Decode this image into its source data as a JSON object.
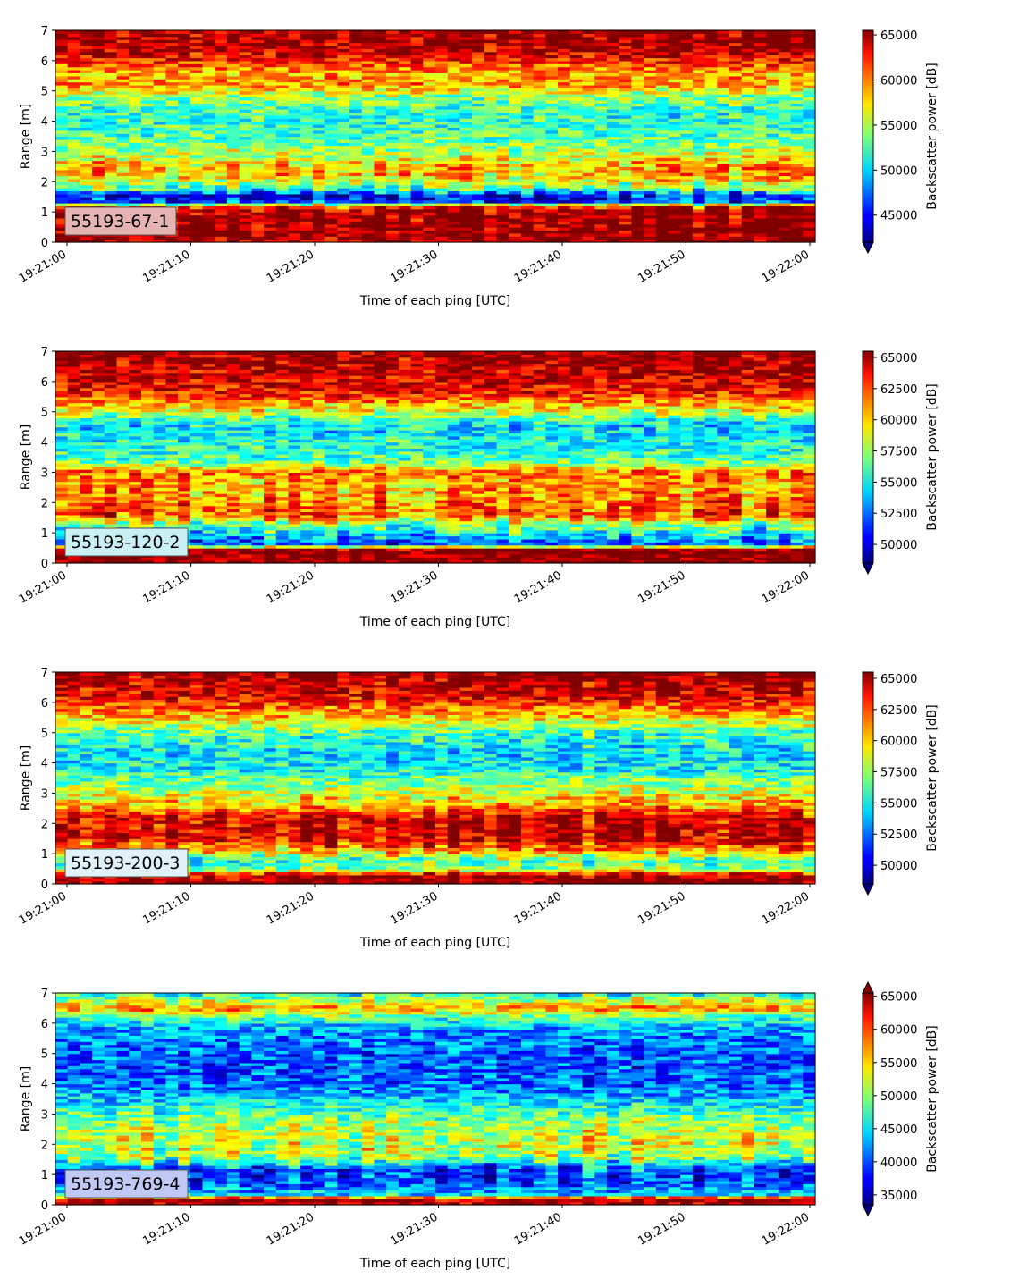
{
  "chart_data": [
    {
      "type": "heatmap",
      "label": "55193-67-1",
      "label_color": "#e6b3b3",
      "xlabel": "Time of each ping [UTC]",
      "ylabel": "Range [m]",
      "colorbar_label": "Backscatter power [dB]",
      "x_ticks": [
        "19:21:00",
        "19:21:10",
        "19:21:20",
        "19:21:30",
        "19:21:40",
        "19:21:50",
        "19:22:00"
      ],
      "y_ticks": [
        "0",
        "1",
        "2",
        "3",
        "4",
        "5",
        "6",
        "7"
      ],
      "ylim": [
        0,
        7
      ],
      "clim": [
        42000,
        65500
      ],
      "colorbar_ticks": [
        "45000",
        "50000",
        "55000",
        "60000",
        "65000"
      ],
      "colorbar_extend": "min",
      "profile": [
        [
          0.0,
          0.95
        ],
        [
          0.2,
          0.99
        ],
        [
          1.1,
          0.99
        ],
        [
          1.2,
          0.75
        ],
        [
          1.35,
          0.2
        ],
        [
          1.55,
          0.12
        ],
        [
          1.75,
          0.45
        ],
        [
          2.2,
          0.7
        ],
        [
          2.5,
          0.72
        ],
        [
          2.9,
          0.58
        ],
        [
          3.5,
          0.45
        ],
        [
          4.2,
          0.4
        ],
        [
          4.8,
          0.5
        ],
        [
          5.2,
          0.72
        ],
        [
          5.6,
          0.7
        ],
        [
          6.0,
          0.85
        ],
        [
          6.4,
          0.96
        ],
        [
          7.0,
          1.0
        ]
      ]
    },
    {
      "type": "heatmap",
      "label": "55193-120-2",
      "label_color": "#c8f0f5",
      "xlabel": "Time of each ping [UTC]",
      "ylabel": "Range [m]",
      "colorbar_label": "Backscatter power [dB]",
      "x_ticks": [
        "19:21:00",
        "19:21:10",
        "19:21:20",
        "19:21:30",
        "19:21:40",
        "19:21:50",
        "19:22:00"
      ],
      "y_ticks": [
        "0",
        "1",
        "2",
        "3",
        "4",
        "5",
        "6",
        "7"
      ],
      "ylim": [
        0,
        7
      ],
      "clim": [
        48500,
        65500
      ],
      "colorbar_ticks": [
        "50000",
        "52500",
        "55000",
        "57500",
        "60000",
        "62500",
        "65000"
      ],
      "colorbar_extend": "min",
      "profile": [
        [
          0.0,
          1.0
        ],
        [
          0.5,
          1.0
        ],
        [
          0.6,
          0.2
        ],
        [
          0.9,
          0.3
        ],
        [
          1.3,
          0.5
        ],
        [
          1.6,
          0.8
        ],
        [
          2.2,
          0.72
        ],
        [
          2.7,
          0.7
        ],
        [
          3.0,
          0.78
        ],
        [
          3.4,
          0.45
        ],
        [
          4.0,
          0.4
        ],
        [
          4.6,
          0.35
        ],
        [
          5.0,
          0.6
        ],
        [
          5.6,
          0.85
        ],
        [
          6.2,
          0.92
        ],
        [
          7.0,
          0.98
        ]
      ]
    },
    {
      "type": "heatmap",
      "label": "55193-200-3",
      "label_color": "#e0f2f8",
      "xlabel": "Time of each ping [UTC]",
      "ylabel": "Range [m]",
      "colorbar_label": "Backscatter power [dB]",
      "x_ticks": [
        "19:21:00",
        "19:21:10",
        "19:21:20",
        "19:21:30",
        "19:21:40",
        "19:21:50",
        "19:22:00"
      ],
      "y_ticks": [
        "0",
        "1",
        "2",
        "3",
        "4",
        "5",
        "6",
        "7"
      ],
      "ylim": [
        0,
        7
      ],
      "clim": [
        48500,
        65500
      ],
      "colorbar_ticks": [
        "50000",
        "52500",
        "55000",
        "57500",
        "60000",
        "62500",
        "65000"
      ],
      "colorbar_extend": "min",
      "profile": [
        [
          0.0,
          1.0
        ],
        [
          0.3,
          0.95
        ],
        [
          0.5,
          0.5
        ],
        [
          0.8,
          0.45
        ],
        [
          1.1,
          0.7
        ],
        [
          1.5,
          0.92
        ],
        [
          2.2,
          0.92
        ],
        [
          2.6,
          0.7
        ],
        [
          3.2,
          0.55
        ],
        [
          3.8,
          0.38
        ],
        [
          4.4,
          0.35
        ],
        [
          5.0,
          0.45
        ],
        [
          5.6,
          0.7
        ],
        [
          6.2,
          0.9
        ],
        [
          7.0,
          0.98
        ]
      ]
    },
    {
      "type": "heatmap",
      "label": "55193-769-4",
      "label_color": "#c0c8f5",
      "xlabel": "Time of each ping [UTC]",
      "ylabel": "Range [m]",
      "colorbar_label": "Backscatter power [dB]",
      "x_ticks": [
        "19:21:00",
        "19:21:10",
        "19:21:20",
        "19:21:30",
        "19:21:40",
        "19:21:50",
        "19:22:00"
      ],
      "y_ticks": [
        "0",
        "1",
        "2",
        "3",
        "4",
        "5",
        "6",
        "7"
      ],
      "ylim": [
        0,
        7
      ],
      "clim": [
        33500,
        65500
      ],
      "colorbar_ticks": [
        "35000",
        "40000",
        "45000",
        "50000",
        "55000",
        "60000",
        "65000"
      ],
      "colorbar_extend": "both",
      "profile": [
        [
          0.0,
          0.95
        ],
        [
          0.2,
          0.95
        ],
        [
          0.35,
          0.35
        ],
        [
          0.8,
          0.18
        ],
        [
          1.2,
          0.22
        ],
        [
          1.6,
          0.55
        ],
        [
          2.2,
          0.6
        ],
        [
          2.8,
          0.52
        ],
        [
          3.4,
          0.35
        ],
        [
          4.0,
          0.22
        ],
        [
          4.6,
          0.2
        ],
        [
          5.2,
          0.22
        ],
        [
          5.8,
          0.28
        ],
        [
          6.2,
          0.45
        ],
        [
          6.5,
          0.75
        ],
        [
          6.8,
          0.55
        ],
        [
          7.0,
          0.4
        ]
      ]
    }
  ]
}
